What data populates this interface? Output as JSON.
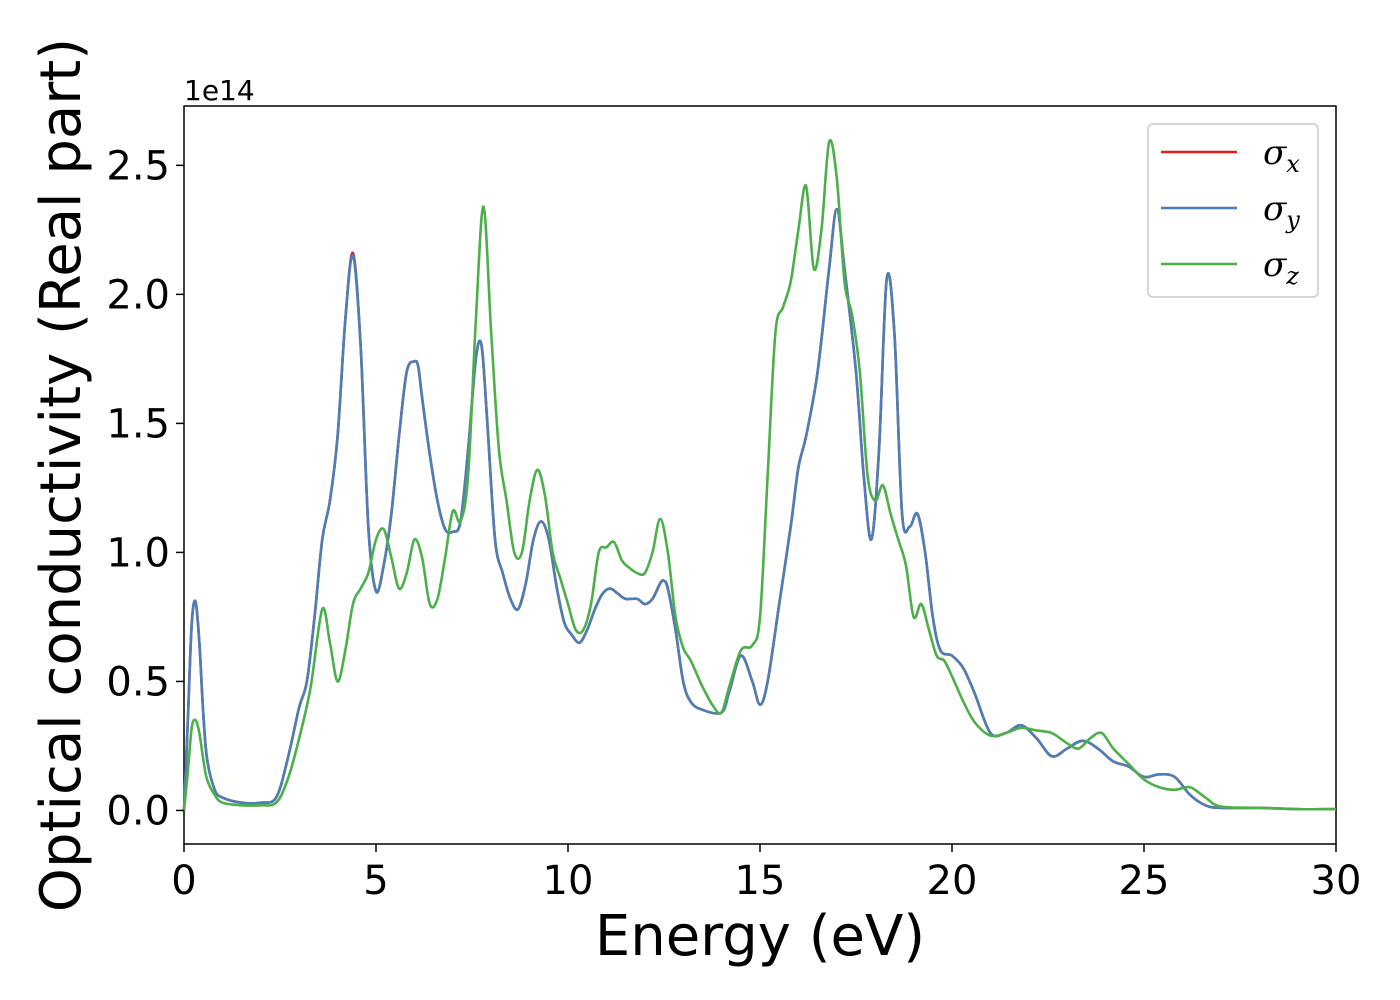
{
  "chart_data": {
    "type": "line",
    "xlabel": "Energy (eV)",
    "ylabel": "Optical conductivity (Real part)",
    "y_offset_label": "1e14",
    "xlim": [
      0,
      30
    ],
    "ylim": [
      -0.13,
      2.73
    ],
    "x_ticks": [
      0,
      5,
      10,
      15,
      20,
      25,
      30
    ],
    "y_ticks": [
      0.0,
      0.5,
      1.0,
      1.5,
      2.0,
      2.5
    ],
    "x_tick_labels": [
      "0",
      "5",
      "10",
      "15",
      "20",
      "25",
      "30"
    ],
    "y_tick_labels": [
      "0.0",
      "0.5",
      "1.0",
      "1.5",
      "2.0",
      "2.5"
    ],
    "grid": false,
    "legend_position": "top-right",
    "series": [
      {
        "name": "σx",
        "symbol": "σ",
        "subscript": "x",
        "color": "#e41a1c",
        "x": [
          0,
          0.1,
          0.2,
          0.3,
          0.4,
          0.5,
          0.6,
          0.8,
          1.0,
          1.5,
          2.0,
          2.4,
          2.7,
          3.0,
          3.2,
          3.4,
          3.6,
          3.8,
          4.0,
          4.2,
          4.4,
          4.6,
          4.8,
          5.0,
          5.2,
          5.4,
          5.6,
          5.8,
          6.0,
          6.1,
          6.2,
          6.4,
          6.6,
          6.8,
          7.0,
          7.2,
          7.4,
          7.6,
          7.75,
          7.9,
          8.1,
          8.3,
          8.5,
          8.7,
          8.9,
          9.1,
          9.3,
          9.5,
          9.7,
          9.9,
          10.1,
          10.3,
          10.5,
          10.7,
          10.9,
          11.1,
          11.3,
          11.5,
          11.8,
          12.0,
          12.2,
          12.4,
          12.5,
          12.6,
          12.8,
          13.0,
          13.2,
          13.5,
          14.0,
          14.2,
          14.5,
          14.8,
          15.0,
          15.2,
          15.5,
          15.8,
          16.0,
          16.2,
          16.5,
          16.8,
          17.0,
          17.2,
          17.5,
          17.7,
          17.9,
          18.1,
          18.3,
          18.5,
          18.7,
          18.9,
          19.1,
          19.3,
          19.5,
          19.7,
          20.0,
          20.3,
          20.6,
          21.0,
          21.4,
          21.8,
          22.2,
          22.6,
          23.0,
          23.4,
          23.8,
          24.2,
          24.6,
          25.0,
          25.4,
          25.8,
          26.2,
          26.6,
          27.0,
          28,
          29,
          30
        ],
        "y": [
          0,
          0.35,
          0.72,
          0.81,
          0.65,
          0.38,
          0.2,
          0.08,
          0.05,
          0.03,
          0.03,
          0.05,
          0.2,
          0.4,
          0.5,
          0.75,
          1.05,
          1.2,
          1.45,
          1.9,
          2.16,
          1.8,
          1.1,
          0.85,
          0.95,
          1.15,
          1.45,
          1.7,
          1.74,
          1.72,
          1.6,
          1.38,
          1.2,
          1.09,
          1.08,
          1.12,
          1.4,
          1.75,
          1.8,
          1.5,
          1.05,
          0.92,
          0.82,
          0.78,
          0.88,
          1.05,
          1.12,
          1.05,
          0.87,
          0.73,
          0.68,
          0.65,
          0.7,
          0.78,
          0.84,
          0.86,
          0.84,
          0.82,
          0.82,
          0.8,
          0.82,
          0.88,
          0.89,
          0.86,
          0.7,
          0.5,
          0.42,
          0.39,
          0.38,
          0.46,
          0.6,
          0.5,
          0.41,
          0.5,
          0.8,
          1.1,
          1.33,
          1.45,
          1.7,
          2.1,
          2.33,
          2.1,
          1.7,
          1.3,
          1.05,
          1.4,
          2.06,
          1.85,
          1.15,
          1.1,
          1.15,
          1.0,
          0.75,
          0.62,
          0.6,
          0.55,
          0.45,
          0.3,
          0.3,
          0.33,
          0.28,
          0.21,
          0.24,
          0.27,
          0.24,
          0.19,
          0.17,
          0.13,
          0.14,
          0.13,
          0.06,
          0.02,
          0.01,
          0.01,
          0.005,
          0.005
        ]
      },
      {
        "name": "σy",
        "symbol": "σ",
        "subscript": "y",
        "color": "#4a7fb8",
        "x": [
          0,
          0.1,
          0.2,
          0.3,
          0.4,
          0.5,
          0.6,
          0.8,
          1.0,
          1.5,
          2.0,
          2.4,
          2.7,
          3.0,
          3.2,
          3.4,
          3.6,
          3.8,
          4.0,
          4.2,
          4.4,
          4.6,
          4.8,
          5.0,
          5.2,
          5.4,
          5.6,
          5.8,
          6.0,
          6.1,
          6.2,
          6.4,
          6.6,
          6.8,
          7.0,
          7.2,
          7.4,
          7.6,
          7.75,
          7.9,
          8.1,
          8.3,
          8.5,
          8.7,
          8.9,
          9.1,
          9.3,
          9.5,
          9.7,
          9.9,
          10.1,
          10.3,
          10.5,
          10.7,
          10.9,
          11.1,
          11.3,
          11.5,
          11.8,
          12.0,
          12.2,
          12.4,
          12.5,
          12.6,
          12.8,
          13.0,
          13.2,
          13.5,
          14.0,
          14.2,
          14.5,
          14.8,
          15.0,
          15.2,
          15.5,
          15.8,
          16.0,
          16.2,
          16.5,
          16.8,
          17.0,
          17.2,
          17.5,
          17.7,
          17.9,
          18.1,
          18.3,
          18.5,
          18.7,
          18.9,
          19.1,
          19.3,
          19.5,
          19.7,
          20.0,
          20.3,
          20.6,
          21.0,
          21.4,
          21.8,
          22.2,
          22.6,
          23.0,
          23.4,
          23.8,
          24.2,
          24.6,
          25.0,
          25.4,
          25.8,
          26.2,
          26.6,
          27.0,
          28,
          29,
          30
        ],
        "y": [
          0,
          0.35,
          0.72,
          0.81,
          0.65,
          0.38,
          0.2,
          0.08,
          0.05,
          0.03,
          0.03,
          0.05,
          0.2,
          0.4,
          0.5,
          0.75,
          1.05,
          1.2,
          1.45,
          1.9,
          2.15,
          1.8,
          1.1,
          0.85,
          0.95,
          1.15,
          1.45,
          1.7,
          1.74,
          1.72,
          1.6,
          1.38,
          1.2,
          1.09,
          1.08,
          1.12,
          1.4,
          1.75,
          1.8,
          1.5,
          1.05,
          0.92,
          0.82,
          0.78,
          0.88,
          1.05,
          1.12,
          1.05,
          0.87,
          0.73,
          0.68,
          0.65,
          0.7,
          0.78,
          0.84,
          0.86,
          0.84,
          0.82,
          0.82,
          0.8,
          0.82,
          0.88,
          0.89,
          0.86,
          0.7,
          0.5,
          0.42,
          0.39,
          0.38,
          0.46,
          0.6,
          0.5,
          0.41,
          0.5,
          0.8,
          1.1,
          1.33,
          1.45,
          1.7,
          2.1,
          2.33,
          2.1,
          1.7,
          1.3,
          1.05,
          1.4,
          2.06,
          1.85,
          1.15,
          1.1,
          1.15,
          1.0,
          0.75,
          0.62,
          0.6,
          0.55,
          0.45,
          0.3,
          0.3,
          0.33,
          0.28,
          0.21,
          0.24,
          0.27,
          0.24,
          0.19,
          0.17,
          0.13,
          0.14,
          0.13,
          0.06,
          0.02,
          0.01,
          0.01,
          0.005,
          0.005
        ]
      },
      {
        "name": "σz",
        "symbol": "σ",
        "subscript": "z",
        "color": "#4daf4a",
        "x": [
          0,
          0.1,
          0.2,
          0.3,
          0.4,
          0.5,
          0.6,
          0.8,
          1.0,
          1.5,
          2.0,
          2.4,
          2.7,
          3.0,
          3.3,
          3.6,
          3.8,
          4.0,
          4.2,
          4.4,
          4.6,
          4.8,
          5.0,
          5.2,
          5.4,
          5.6,
          5.8,
          6.0,
          6.2,
          6.4,
          6.6,
          6.8,
          7.0,
          7.2,
          7.4,
          7.6,
          7.8,
          8.0,
          8.2,
          8.4,
          8.6,
          8.8,
          9.0,
          9.2,
          9.4,
          9.6,
          9.8,
          10.0,
          10.2,
          10.4,
          10.6,
          10.8,
          11.0,
          11.2,
          11.4,
          11.6,
          11.8,
          12.0,
          12.2,
          12.4,
          12.6,
          12.8,
          13.0,
          13.2,
          13.5,
          13.8,
          14.0,
          14.2,
          14.5,
          14.8,
          15.0,
          15.2,
          15.4,
          15.6,
          15.8,
          16.0,
          16.2,
          16.4,
          16.6,
          16.8,
          17.0,
          17.2,
          17.4,
          17.6,
          17.8,
          18.0,
          18.2,
          18.4,
          18.6,
          18.8,
          19.0,
          19.2,
          19.4,
          19.6,
          19.8,
          20.0,
          20.3,
          20.6,
          21.0,
          21.4,
          21.8,
          22.2,
          22.6,
          23.0,
          23.3,
          23.6,
          23.9,
          24.2,
          24.6,
          25.0,
          25.4,
          25.8,
          26.2,
          26.6,
          27.0,
          28,
          29,
          30
        ],
        "y": [
          0,
          0.15,
          0.32,
          0.35,
          0.3,
          0.2,
          0.12,
          0.06,
          0.03,
          0.02,
          0.02,
          0.03,
          0.12,
          0.28,
          0.48,
          0.78,
          0.65,
          0.5,
          0.62,
          0.8,
          0.86,
          0.92,
          1.05,
          1.09,
          0.98,
          0.86,
          0.92,
          1.05,
          0.98,
          0.8,
          0.82,
          0.98,
          1.16,
          1.12,
          1.3,
          1.9,
          2.34,
          1.85,
          1.4,
          1.2,
          1.0,
          1.0,
          1.2,
          1.32,
          1.22,
          1.0,
          0.9,
          0.8,
          0.7,
          0.7,
          0.8,
          1.0,
          1.02,
          1.04,
          0.97,
          0.94,
          0.92,
          0.92,
          1.0,
          1.13,
          1.0,
          0.75,
          0.63,
          0.58,
          0.48,
          0.4,
          0.38,
          0.48,
          0.62,
          0.64,
          0.75,
          1.3,
          1.85,
          1.95,
          2.05,
          2.25,
          2.42,
          2.1,
          2.25,
          2.59,
          2.45,
          2.05,
          1.92,
          1.7,
          1.3,
          1.2,
          1.26,
          1.15,
          1.05,
          0.95,
          0.75,
          0.8,
          0.7,
          0.6,
          0.58,
          0.52,
          0.42,
          0.34,
          0.29,
          0.3,
          0.32,
          0.31,
          0.3,
          0.26,
          0.24,
          0.28,
          0.3,
          0.24,
          0.18,
          0.12,
          0.09,
          0.08,
          0.09,
          0.05,
          0.015,
          0.01,
          0.005,
          0.005
        ]
      }
    ]
  }
}
